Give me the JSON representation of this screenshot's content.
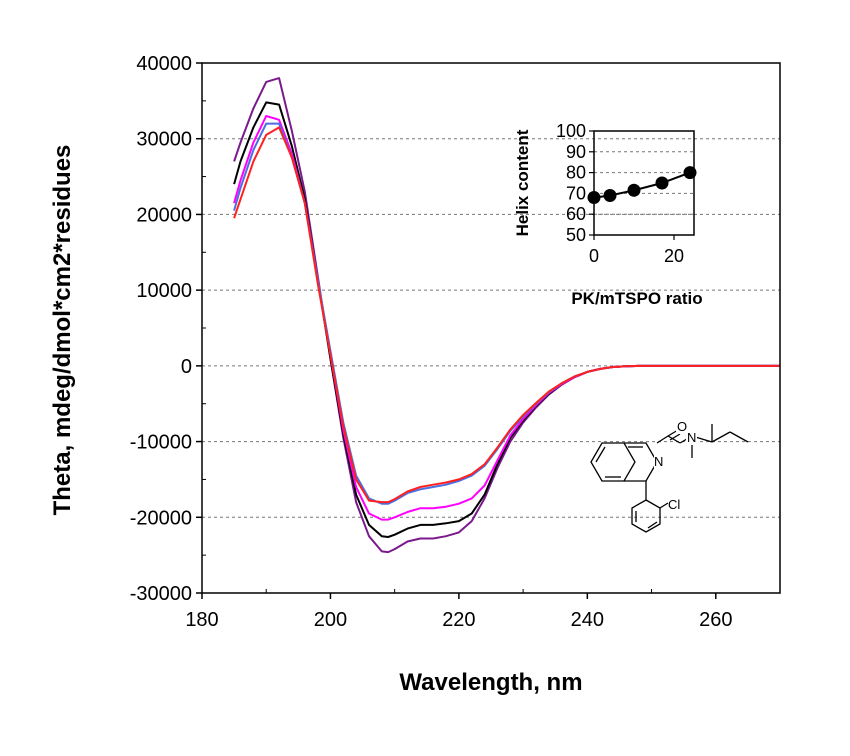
{
  "chart_data": [
    {
      "type": "line",
      "title": "",
      "xlabel": "Wavelength, nm",
      "ylabel": "Theta, mdeg/dmol*cm2*residues",
      "xlim": [
        180,
        270
      ],
      "ylim": [
        -30000,
        40000
      ],
      "x_ticks": [
        "180",
        "200",
        "220",
        "240",
        "260"
      ],
      "y_ticks": [
        "40000",
        "30000",
        "20000",
        "10000",
        "0",
        "-10000",
        "-20000",
        "-30000"
      ],
      "grid": "horizontal dashed",
      "legend": "none",
      "series": [
        {
          "color": "#7b1a8c",
          "x": [
            185,
            186,
            188,
            190,
            192,
            194,
            196,
            198,
            200,
            202,
            204,
            206,
            208,
            209,
            210,
            212,
            214,
            216,
            218,
            220,
            222,
            224,
            226,
            228,
            230,
            232,
            234,
            236,
            238,
            240,
            242,
            244,
            246,
            248,
            250,
            260,
            270
          ],
          "y": [
            27000,
            29500,
            34000,
            37500,
            38000,
            31000,
            23000,
            12000,
            1000,
            -9500,
            -18000,
            -22500,
            -24500,
            -24600,
            -24200,
            -23200,
            -22800,
            -22800,
            -22500,
            -22000,
            -20500,
            -17500,
            -13500,
            -10000,
            -7500,
            -5500,
            -3800,
            -2500,
            -1500,
            -800,
            -400,
            -150,
            -50,
            0,
            0,
            0,
            0
          ]
        },
        {
          "color": "#000000",
          "x": [
            185,
            186,
            188,
            190,
            192,
            194,
            196,
            198,
            200,
            202,
            204,
            206,
            208,
            209,
            210,
            212,
            214,
            216,
            218,
            220,
            222,
            224,
            226,
            228,
            230,
            232,
            234,
            236,
            238,
            240,
            242,
            244,
            246,
            248,
            250,
            260,
            270
          ],
          "y": [
            24000,
            27000,
            31500,
            34800,
            34500,
            29000,
            22000,
            11500,
            1000,
            -9000,
            -17000,
            -21000,
            -22500,
            -22600,
            -22300,
            -21500,
            -21000,
            -21000,
            -20800,
            -20500,
            -19500,
            -17000,
            -13000,
            -9500,
            -7200,
            -5300,
            -3700,
            -2400,
            -1500,
            -800,
            -400,
            -150,
            -50,
            0,
            0,
            0,
            0
          ]
        },
        {
          "color": "#ff00ff",
          "x": [
            185,
            186,
            188,
            190,
            192,
            194,
            196,
            198,
            200,
            202,
            204,
            206,
            208,
            209,
            210,
            212,
            214,
            216,
            218,
            220,
            222,
            224,
            226,
            228,
            230,
            232,
            234,
            236,
            238,
            240,
            242,
            244,
            246,
            248,
            250,
            260,
            270
          ],
          "y": [
            21500,
            24500,
            29500,
            33000,
            32500,
            28000,
            21500,
            11500,
            1500,
            -8500,
            -16000,
            -19500,
            -20300,
            -20300,
            -20000,
            -19300,
            -18800,
            -18800,
            -18600,
            -18200,
            -17500,
            -15800,
            -12500,
            -9200,
            -7000,
            -5200,
            -3600,
            -2400,
            -1500,
            -800,
            -400,
            -150,
            -50,
            0,
            0,
            0,
            0
          ]
        },
        {
          "color": "#4a6fe0",
          "x": [
            185,
            186,
            188,
            190,
            192,
            194,
            196,
            198,
            200,
            202,
            204,
            206,
            208,
            209,
            210,
            212,
            214,
            216,
            218,
            220,
            222,
            224,
            226,
            228,
            230,
            232,
            234,
            236,
            238,
            240,
            242,
            244,
            246,
            248,
            250,
            260,
            270
          ],
          "y": [
            20500,
            23500,
            28500,
            32000,
            32000,
            27500,
            21500,
            11500,
            2000,
            -7500,
            -14500,
            -17500,
            -18200,
            -18200,
            -17800,
            -16800,
            -16300,
            -16000,
            -15700,
            -15200,
            -14500,
            -13200,
            -11000,
            -8600,
            -6700,
            -5000,
            -3500,
            -2300,
            -1400,
            -800,
            -400,
            -150,
            -50,
            0,
            0,
            0,
            0
          ]
        },
        {
          "color": "#ff2020",
          "x": [
            185,
            186,
            188,
            190,
            192,
            194,
            196,
            198,
            200,
            202,
            204,
            206,
            208,
            209,
            210,
            212,
            214,
            216,
            218,
            220,
            222,
            224,
            226,
            228,
            230,
            232,
            234,
            236,
            238,
            240,
            242,
            244,
            246,
            248,
            250,
            260,
            270
          ],
          "y": [
            19500,
            22000,
            27000,
            30500,
            31500,
            27500,
            21500,
            11000,
            1500,
            -8000,
            -15000,
            -17800,
            -18000,
            -18000,
            -17600,
            -16600,
            -16000,
            -15700,
            -15400,
            -15000,
            -14300,
            -13000,
            -10800,
            -8400,
            -6500,
            -4900,
            -3400,
            -2300,
            -1400,
            -800,
            -400,
            -150,
            -50,
            0,
            0,
            0,
            0
          ]
        }
      ]
    },
    {
      "type": "scatter",
      "title": "",
      "xlabel": "PK/mTSPO ratio",
      "ylabel": "Helix content",
      "xlim": [
        0,
        25
      ],
      "ylim": [
        50,
        100
      ],
      "x_ticks": [
        "0",
        "20"
      ],
      "y_ticks": [
        "100",
        "90",
        "80",
        "70",
        "60",
        "50"
      ],
      "grid": "horizontal dashed",
      "series": [
        {
          "color": "#000000",
          "x": [
            0,
            4,
            10,
            17,
            24
          ],
          "y": [
            68,
            69,
            71.5,
            75,
            80
          ]
        }
      ]
    }
  ],
  "structure": {
    "chlorine_label": "Cl",
    "nitrogen_label_ring": "N",
    "oxygen_label": "O",
    "nitrogen_label_amide": "N"
  }
}
